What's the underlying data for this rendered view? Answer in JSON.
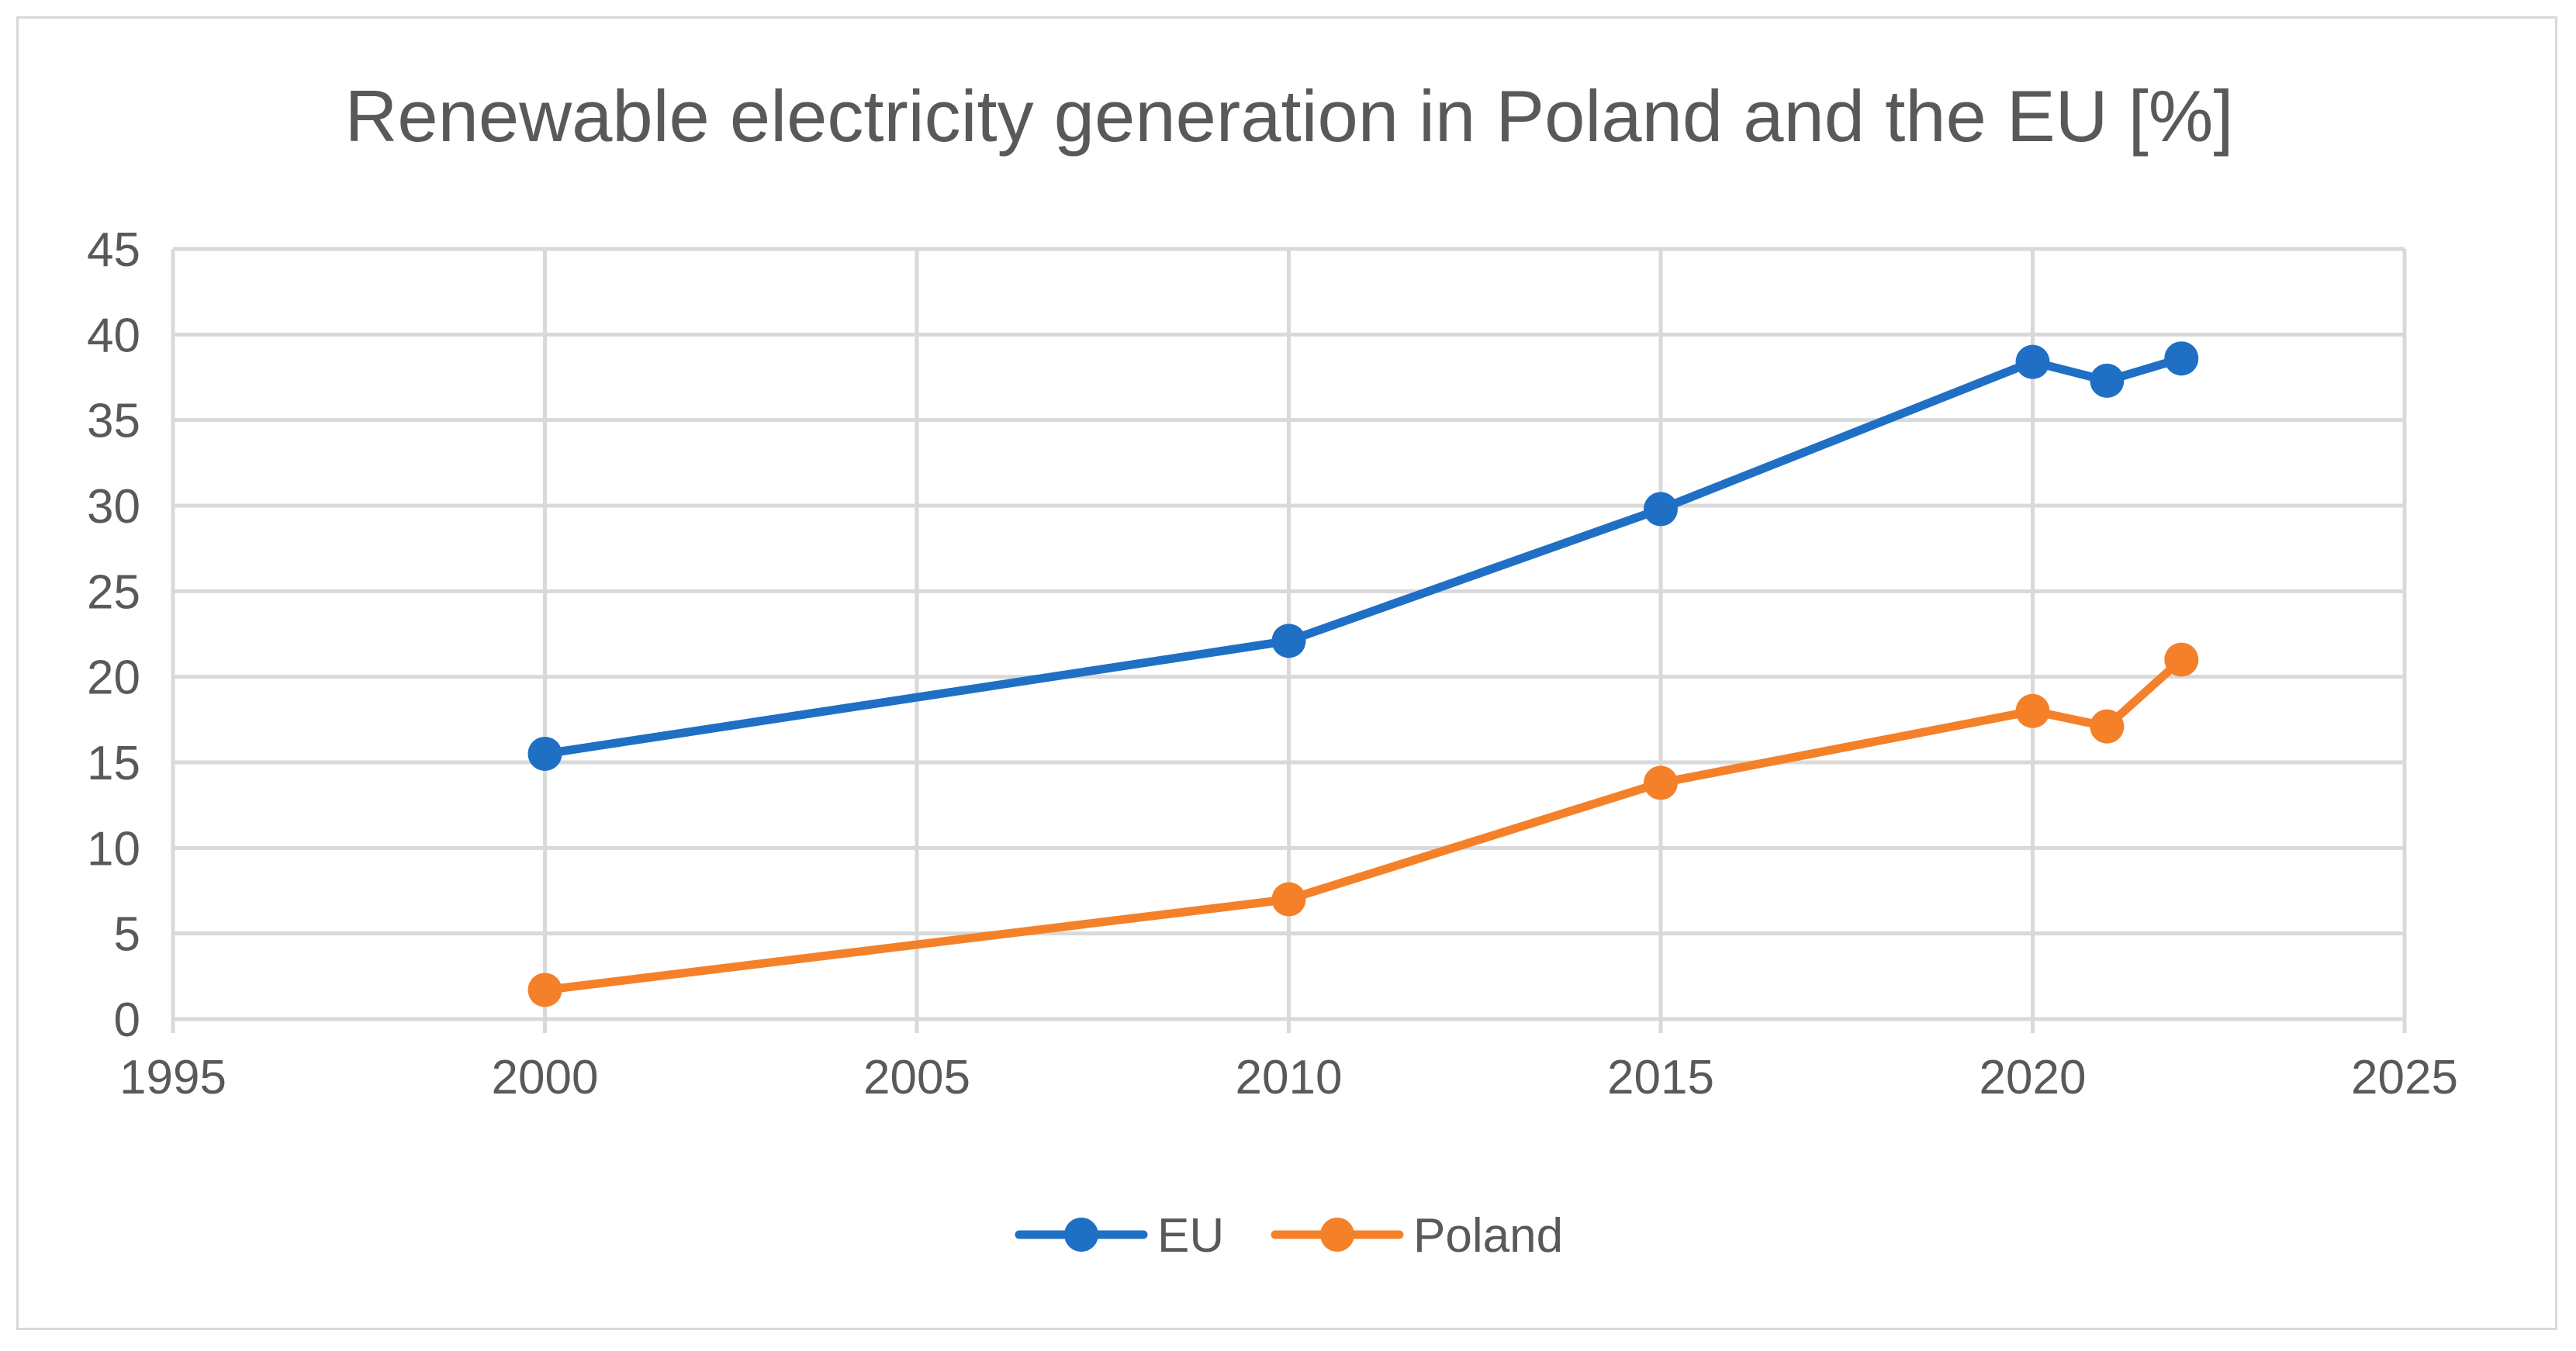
{
  "chart_data": {
    "type": "scatter",
    "subtype": "line-with-markers",
    "title": "Renewable electricity generation in Poland and the EU [%]",
    "xlabel": "",
    "ylabel": "",
    "xlim": [
      1995,
      2025
    ],
    "ylim": [
      0,
      45
    ],
    "x_ticks": [
      1995,
      2000,
      2005,
      2010,
      2015,
      2020,
      2025
    ],
    "y_ticks": [
      0,
      5,
      10,
      15,
      20,
      25,
      30,
      35,
      40,
      45
    ],
    "grid": true,
    "legend_position": "bottom",
    "series": [
      {
        "name": "EU",
        "color": "#1f6fc5",
        "x": [
          2000,
          2010,
          2015,
          2020,
          2021,
          2022
        ],
        "y": [
          15.5,
          22.1,
          29.8,
          38.4,
          37.3,
          38.6
        ]
      },
      {
        "name": "Poland",
        "color": "#f4812a",
        "x": [
          2000,
          2010,
          2015,
          2020,
          2021,
          2022
        ],
        "y": [
          1.7,
          7.0,
          13.8,
          18.0,
          17.1,
          21.0
        ]
      }
    ]
  }
}
